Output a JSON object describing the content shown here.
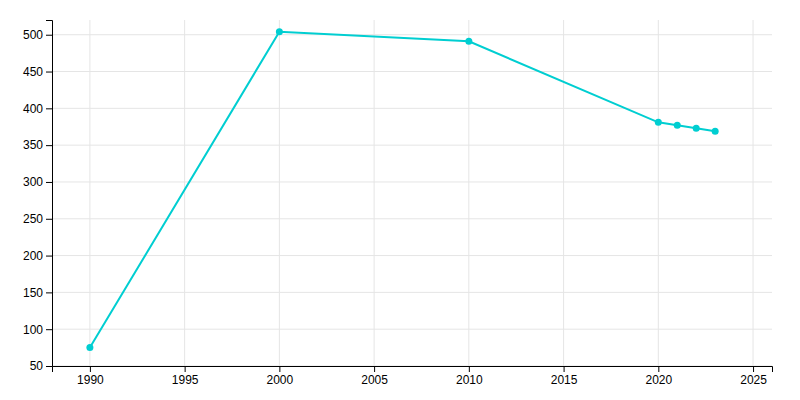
{
  "chart_data": {
    "type": "line",
    "x": [
      1990,
      2000,
      2010,
      2020,
      2021,
      2022,
      2023
    ],
    "values": [
      75,
      504,
      491,
      381,
      377,
      373,
      369
    ],
    "color": "#00CED1",
    "marker": "circle",
    "xlim": [
      1988,
      2026
    ],
    "ylim": [
      50,
      520
    ],
    "xticks": [
      1990,
      1995,
      2000,
      2005,
      2010,
      2015,
      2020,
      2025
    ],
    "yticks": [
      50,
      100,
      150,
      200,
      250,
      300,
      350,
      400,
      450,
      500
    ],
    "grid": true
  }
}
